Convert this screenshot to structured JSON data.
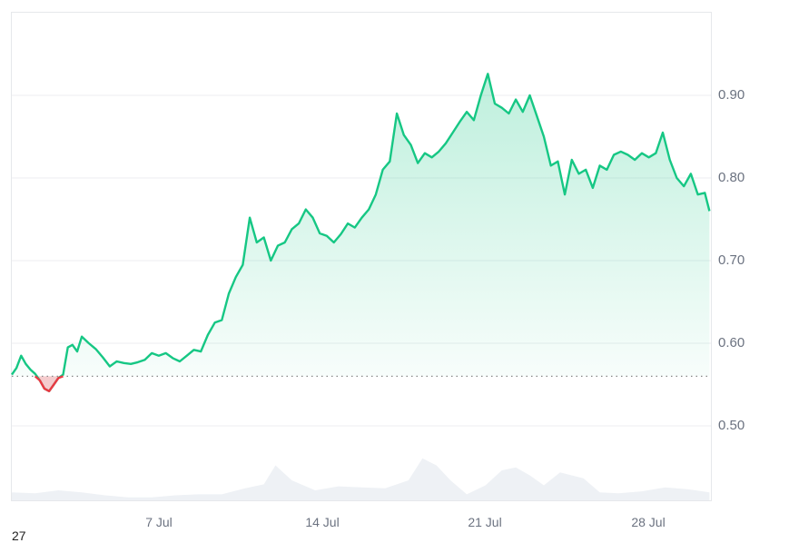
{
  "chart_data": {
    "type": "area",
    "title": "",
    "xlabel": "",
    "ylabel": "",
    "ylim": [
      0.41,
      1.0
    ],
    "baseline": 0.56,
    "x_ticks": [
      "7 Jul",
      "14 Jul",
      "21 Jul",
      "28 Jul"
    ],
    "y_ticks": [
      "0.90",
      "0.80",
      "0.70",
      "0.60",
      "0.50"
    ],
    "grid": true,
    "legend": null,
    "series": [
      {
        "name": "price",
        "color_up": "#16c784",
        "color_down": "#ea3943",
        "x_day_offset": [
          0,
          0.2,
          0.4,
          0.6,
          0.8,
          1.0,
          1.2,
          1.4,
          1.6,
          1.8,
          2.0,
          2.2,
          2.4,
          2.6,
          2.8,
          3.0,
          3.3,
          3.6,
          3.9,
          4.2,
          4.5,
          4.8,
          5.1,
          5.4,
          5.7,
          6.0,
          6.3,
          6.6,
          6.9,
          7.2,
          7.5,
          7.8,
          8.1,
          8.4,
          8.7,
          9.0,
          9.3,
          9.6,
          9.9,
          10.2,
          10.5,
          10.8,
          11.1,
          11.4,
          11.7,
          12.0,
          12.3,
          12.6,
          12.9,
          13.2,
          13.5,
          13.8,
          14.1,
          14.4,
          14.7,
          15.0,
          15.3,
          15.6,
          15.9,
          16.2,
          16.5,
          16.8,
          17.1,
          17.4,
          17.7,
          18.0,
          18.3,
          18.6,
          18.9,
          19.2,
          19.5,
          19.8,
          20.1,
          20.4,
          20.7,
          21.0,
          21.3,
          21.6,
          21.9,
          22.2,
          22.5,
          22.8,
          23.1,
          23.4,
          23.7,
          24.0,
          24.3,
          24.6,
          24.9,
          25.2,
          25.5,
          25.8,
          26.1,
          26.4,
          26.7,
          27.0,
          27.3,
          27.6,
          27.9,
          28.2,
          28.5,
          28.8,
          29.1,
          29.4,
          29.7,
          29.9
        ],
        "values": [
          0.562,
          0.57,
          0.585,
          0.575,
          0.568,
          0.563,
          0.555,
          0.545,
          0.542,
          0.55,
          0.558,
          0.562,
          0.595,
          0.598,
          0.59,
          0.608,
          0.6,
          0.593,
          0.583,
          0.572,
          0.578,
          0.576,
          0.575,
          0.577,
          0.58,
          0.588,
          0.585,
          0.588,
          0.582,
          0.578,
          0.585,
          0.592,
          0.59,
          0.61,
          0.625,
          0.628,
          0.66,
          0.68,
          0.695,
          0.752,
          0.722,
          0.728,
          0.7,
          0.718,
          0.722,
          0.738,
          0.745,
          0.762,
          0.752,
          0.733,
          0.73,
          0.722,
          0.732,
          0.745,
          0.74,
          0.752,
          0.762,
          0.78,
          0.81,
          0.82,
          0.878,
          0.852,
          0.84,
          0.818,
          0.83,
          0.825,
          0.832,
          0.842,
          0.855,
          0.868,
          0.88,
          0.87,
          0.9,
          0.926,
          0.89,
          0.885,
          0.878,
          0.895,
          0.88,
          0.9,
          0.875,
          0.85,
          0.815,
          0.82,
          0.78,
          0.822,
          0.805,
          0.81,
          0.788,
          0.815,
          0.81,
          0.828,
          0.832,
          0.828,
          0.822,
          0.83,
          0.825,
          0.83,
          0.855,
          0.822,
          0.8,
          0.79,
          0.805,
          0.78,
          0.782,
          0.76
        ]
      },
      {
        "name": "volume",
        "color": "#eef1f5",
        "x_day_offset": [
          0,
          1,
          2,
          3,
          4,
          5,
          6,
          7,
          8,
          9,
          10,
          10.8,
          11.3,
          12,
          13,
          14,
          15,
          16,
          17,
          17.6,
          18.2,
          18.8,
          19.5,
          20.3,
          21,
          21.6,
          22.2,
          22.8,
          23.5,
          24.5,
          25.2,
          26,
          27,
          28,
          29,
          29.9
        ],
        "values": [
          0.08,
          0.07,
          0.1,
          0.08,
          0.05,
          0.03,
          0.03,
          0.05,
          0.06,
          0.06,
          0.12,
          0.16,
          0.35,
          0.2,
          0.1,
          0.14,
          0.13,
          0.12,
          0.2,
          0.42,
          0.35,
          0.2,
          0.06,
          0.15,
          0.3,
          0.33,
          0.25,
          0.15,
          0.28,
          0.22,
          0.08,
          0.07,
          0.09,
          0.13,
          0.11,
          0.08
        ]
      }
    ]
  },
  "axis": {
    "x_start_offset_label": "27"
  }
}
